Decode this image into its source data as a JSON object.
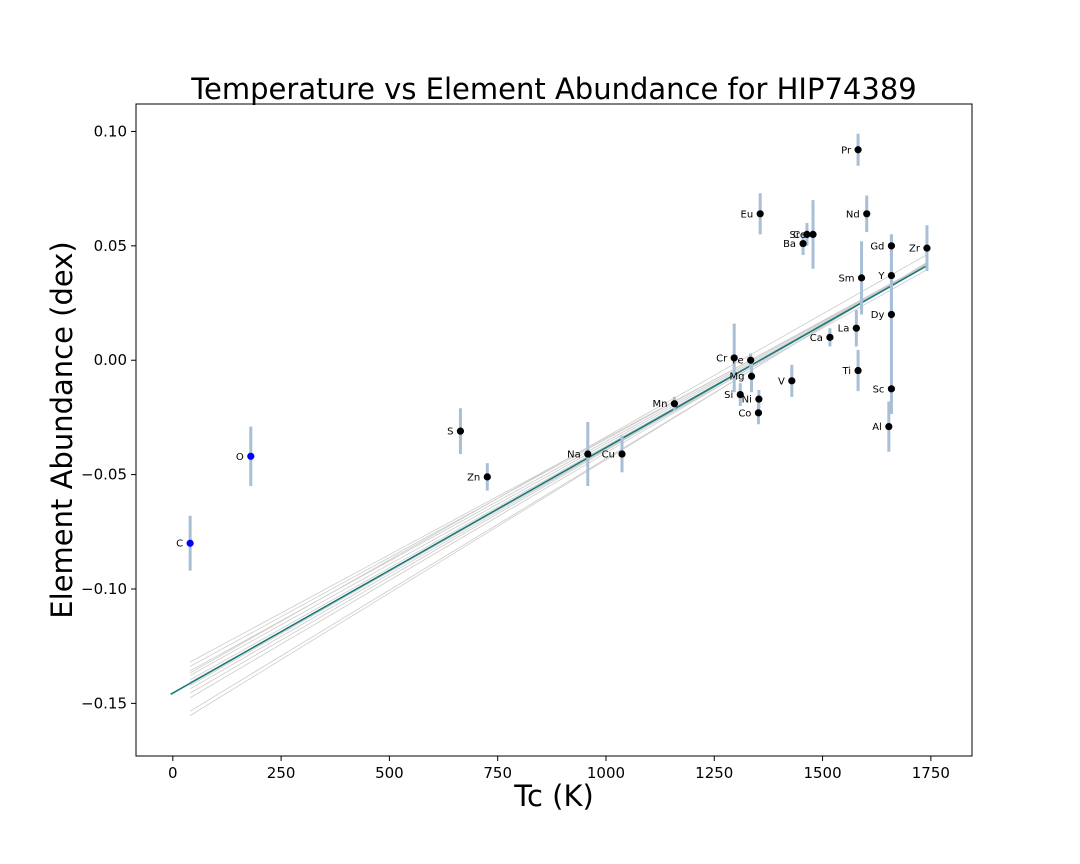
{
  "chart_data": {
    "type": "scatter",
    "title": "Temperature vs Element Abundance for HIP74389",
    "xlabel": "Tc (K)",
    "ylabel": "Element Abundance (dex)",
    "xlim": [
      -85,
      1845
    ],
    "ylim": [
      -0.173,
      0.112
    ],
    "xticks": [
      0,
      250,
      500,
      750,
      1000,
      1250,
      1500,
      1750
    ],
    "xtick_labels": [
      "0",
      "250",
      "500",
      "750",
      "1000",
      "1250",
      "1500",
      "1750"
    ],
    "yticks": [
      -0.15,
      -0.1,
      -0.05,
      0.0,
      0.05,
      0.1
    ],
    "ytick_labels": [
      "−0.15",
      "−0.10",
      "−0.05",
      "0.00",
      "0.05",
      "0.10"
    ],
    "grid": false,
    "colors": {
      "volatile": "#0000ff",
      "refractory": "#000000",
      "errorbar": "#a8bfd6",
      "fit": "#1a7a7a",
      "samples": "#cccccc"
    },
    "points": [
      {
        "label": "C",
        "x": 40,
        "y": -0.08,
        "err": 0.012,
        "group": "volatile"
      },
      {
        "label": "O",
        "x": 180,
        "y": -0.042,
        "err": 0.013,
        "group": "volatile"
      },
      {
        "label": "S",
        "x": 664,
        "y": -0.031,
        "err": 0.01,
        "group": "refractory"
      },
      {
        "label": "Zn",
        "x": 726,
        "y": -0.051,
        "err": 0.006,
        "group": "refractory"
      },
      {
        "label": "Na",
        "x": 958,
        "y": -0.041,
        "err": 0.014,
        "group": "refractory"
      },
      {
        "label": "Cu",
        "x": 1037,
        "y": -0.041,
        "err": 0.008,
        "group": "refractory"
      },
      {
        "label": "Mn",
        "x": 1158,
        "y": -0.019,
        "err": 0.003,
        "group": "refractory"
      },
      {
        "label": "Cr",
        "x": 1296,
        "y": 0.001,
        "err": 0.015,
        "group": "refractory"
      },
      {
        "label": "Fe",
        "x": 1334,
        "y": 0.0,
        "err": 0.003,
        "group": "refractory"
      },
      {
        "label": "Mg",
        "x": 1336,
        "y": -0.007,
        "err": 0.007,
        "group": "refractory"
      },
      {
        "label": "Si",
        "x": 1310,
        "y": -0.015,
        "err": 0.005,
        "group": "refractory"
      },
      {
        "label": "Ni",
        "x": 1353,
        "y": -0.017,
        "err": 0.004,
        "group": "refractory"
      },
      {
        "label": "Co",
        "x": 1352,
        "y": -0.023,
        "err": 0.005,
        "group": "refractory"
      },
      {
        "label": "V",
        "x": 1429,
        "y": -0.009,
        "err": 0.007,
        "group": "refractory"
      },
      {
        "label": "Ti",
        "x": 1582,
        "y": -0.0045,
        "err": 0.009,
        "group": "refractory"
      },
      {
        "label": "Ca",
        "x": 1517,
        "y": 0.01,
        "err": 0.004,
        "group": "refractory"
      },
      {
        "label": "La",
        "x": 1578,
        "y": 0.014,
        "err": 0.008,
        "group": "refractory"
      },
      {
        "label": "Eu",
        "x": 1356,
        "y": 0.064,
        "err": 0.009,
        "group": "refractory"
      },
      {
        "label": "Ba",
        "x": 1455,
        "y": 0.051,
        "err": 0.005,
        "group": "refractory"
      },
      {
        "label": "Sr",
        "x": 1464,
        "y": 0.055,
        "err": 0.005,
        "group": "refractory"
      },
      {
        "label": "Ce",
        "x": 1478,
        "y": 0.055,
        "err": 0.015,
        "group": "refractory"
      },
      {
        "label": "Sm",
        "x": 1590,
        "y": 0.036,
        "err": 0.016,
        "group": "refractory"
      },
      {
        "label": "Pr",
        "x": 1582,
        "y": 0.092,
        "err": 0.007,
        "group": "refractory"
      },
      {
        "label": "Nd",
        "x": 1602,
        "y": 0.064,
        "err": 0.008,
        "group": "refractory"
      },
      {
        "label": "Gd",
        "x": 1659,
        "y": 0.05,
        "err": 0.005,
        "group": "refractory"
      },
      {
        "label": "Y",
        "x": 1659,
        "y": 0.037,
        "err": 0.018,
        "group": "refractory"
      },
      {
        "label": "Dy",
        "x": 1659,
        "y": 0.02,
        "err": 0.022,
        "group": "refractory"
      },
      {
        "label": "Sc",
        "x": 1659,
        "y": -0.0125,
        "err": 0.011,
        "group": "refractory"
      },
      {
        "label": "Al",
        "x": 1653,
        "y": -0.029,
        "err": 0.011,
        "group": "refractory"
      },
      {
        "label": "Zr",
        "x": 1741,
        "y": 0.049,
        "err": 0.01,
        "group": "refractory"
      }
    ],
    "fit": {
      "intercept": -0.1455,
      "slope": 0.0001073
    },
    "fit_samples": [
      {
        "intercept": -0.136,
        "slope": 0.000102
      },
      {
        "intercept": -0.138,
        "slope": 0.0001035
      },
      {
        "intercept": -0.14,
        "slope": 0.0001045
      },
      {
        "intercept": -0.142,
        "slope": 0.0001055
      },
      {
        "intercept": -0.144,
        "slope": 0.0001065
      },
      {
        "intercept": -0.1465,
        "slope": 0.000108
      },
      {
        "intercept": -0.148,
        "slope": 0.000109
      },
      {
        "intercept": -0.15,
        "slope": 0.0001105
      },
      {
        "intercept": -0.152,
        "slope": 0.0001115
      },
      {
        "intercept": -0.158,
        "slope": 0.000115
      },
      {
        "intercept": -0.16,
        "slope": 0.0001165
      },
      {
        "intercept": -0.145,
        "slope": 0.000106
      },
      {
        "intercept": -0.141,
        "slope": 0.0001075
      }
    ]
  }
}
